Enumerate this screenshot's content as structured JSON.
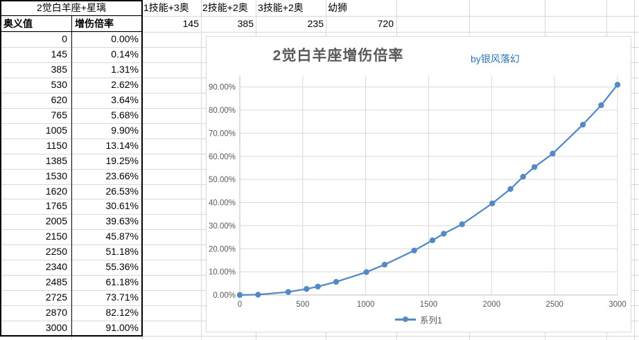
{
  "sheet": {
    "table": {
      "title": "2觉白羊座+星璃",
      "col_headers": [
        "奥义值",
        "增伤倍率"
      ],
      "rows": [
        [
          "0",
          "0.00%"
        ],
        [
          "145",
          "0.14%"
        ],
        [
          "385",
          "1.31%"
        ],
        [
          "530",
          "2.62%"
        ],
        [
          "620",
          "3.64%"
        ],
        [
          "765",
          "5.68%"
        ],
        [
          "1005",
          "9.90%"
        ],
        [
          "1150",
          "13.14%"
        ],
        [
          "1385",
          "19.25%"
        ],
        [
          "1530",
          "23.66%"
        ],
        [
          "1620",
          "26.53%"
        ],
        [
          "1765",
          "30.61%"
        ],
        [
          "2005",
          "39.63%"
        ],
        [
          "2150",
          "45.87%"
        ],
        [
          "2250",
          "51.18%"
        ],
        [
          "2340",
          "55.36%"
        ],
        [
          "2485",
          "61.18%"
        ],
        [
          "2725",
          "73.71%"
        ],
        [
          "2870",
          "82.12%"
        ],
        [
          "3000",
          "91.00%"
        ]
      ]
    },
    "top_cells": [
      {
        "label": "1技能+3奥",
        "value": "145"
      },
      {
        "label": "2技能+2奥",
        "value": "385"
      },
      {
        "label": "3技能+2奥",
        "value": "235"
      },
      {
        "label": "幼狮",
        "value": "720"
      }
    ]
  },
  "chart": {
    "title": "2觉白羊座增伤倍率",
    "byline": "by银风落幻",
    "legend": "系列1",
    "colors": {
      "series": "#5589c5",
      "title": "#595959",
      "byline": "#2e75b6",
      "grid": "#d9d9d9",
      "axis": "#bfbfbf",
      "tick_label": "#595959"
    }
  },
  "chart_data": {
    "type": "line",
    "title": "2觉白羊座增伤倍率",
    "xlabel": "",
    "ylabel": "",
    "xlim": [
      0,
      3000
    ],
    "ylim_percent": [
      0,
      95
    ],
    "grid": true,
    "legend_position": "bottom",
    "x_ticks": [
      "0",
      "500",
      "1000",
      "1500",
      "2000",
      "2500",
      "3000"
    ],
    "y_ticks": [
      "0.00%",
      "10.00%",
      "20.00%",
      "30.00%",
      "40.00%",
      "50.00%",
      "60.00%",
      "70.00%",
      "80.00%",
      "90.00%"
    ],
    "series": [
      {
        "name": "系列1",
        "x": [
          0,
          145,
          385,
          530,
          620,
          765,
          1005,
          1150,
          1385,
          1530,
          1620,
          1765,
          2005,
          2150,
          2250,
          2340,
          2485,
          2725,
          2870,
          3000
        ],
        "y_percent": [
          0,
          0.14,
          1.31,
          2.62,
          3.64,
          5.68,
          9.9,
          13.14,
          19.25,
          23.66,
          26.53,
          30.61,
          39.63,
          45.87,
          51.18,
          55.36,
          61.18,
          73.71,
          82.12,
          91.0
        ]
      }
    ]
  }
}
